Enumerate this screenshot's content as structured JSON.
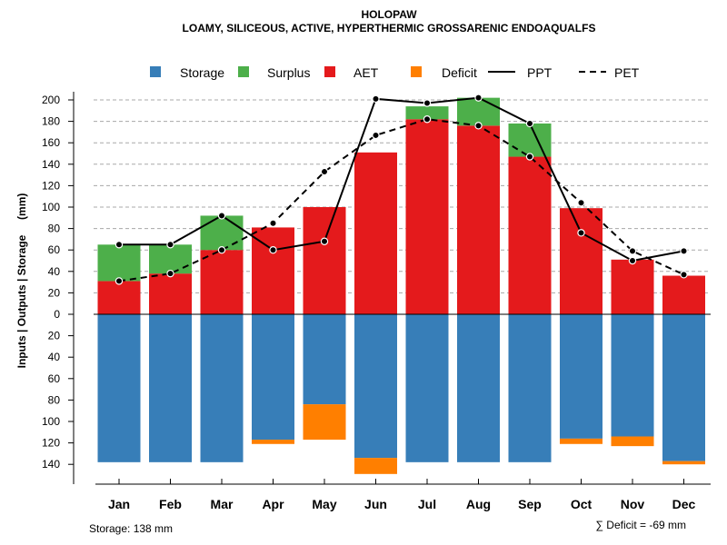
{
  "chart_data": {
    "type": "bar",
    "title": "HOLOPAW",
    "subtitle": "LOAMY, SILICEOUS, ACTIVE, HYPERTHERMIC GROSSARENIC ENDOAQUALFS",
    "ylabel": "Inputs | Outputs | Storage     (mm)",
    "categories": [
      "Jan",
      "Feb",
      "Mar",
      "Apr",
      "May",
      "Jun",
      "Jul",
      "Aug",
      "Sep",
      "Oct",
      "Nov",
      "Dec"
    ],
    "ylim_top": [
      0,
      210
    ],
    "ylim_bottom": [
      0,
      150
    ],
    "yticks_top": [
      "0",
      "20",
      "40",
      "60",
      "80",
      "100",
      "120",
      "140",
      "160",
      "180",
      "200"
    ],
    "yticks_bottom": [
      "20",
      "40",
      "60",
      "80",
      "100",
      "120",
      "140"
    ],
    "legend": [
      {
        "label": "Storage",
        "kind": "box"
      },
      {
        "label": "Surplus",
        "kind": "box"
      },
      {
        "label": "AET",
        "kind": "box"
      },
      {
        "label": "Deficit",
        "kind": "box"
      },
      {
        "label": "PPT",
        "kind": "solid"
      },
      {
        "label": "PET",
        "kind": "dashed"
      }
    ],
    "series": [
      {
        "name": "AET",
        "values": [
          31,
          38,
          60,
          81,
          100,
          151,
          182,
          176,
          147,
          99,
          51,
          36
        ]
      },
      {
        "name": "Surplus",
        "values": [
          34,
          27,
          32,
          0,
          0,
          0,
          12,
          26,
          31,
          0,
          0,
          0
        ]
      },
      {
        "name": "PPT",
        "values": [
          65,
          65,
          92,
          60,
          68,
          201,
          197,
          202,
          178,
          76,
          50,
          59
        ]
      },
      {
        "name": "PET",
        "values": [
          31,
          38,
          60,
          85,
          133,
          167,
          182,
          176,
          147,
          104,
          59,
          37
        ]
      },
      {
        "name": "Storage",
        "values": [
          138,
          138,
          138,
          117,
          84,
          134,
          138,
          138,
          138,
          116,
          114,
          137
        ]
      },
      {
        "name": "Deficit",
        "values": [
          0,
          0,
          0,
          4,
          33,
          15,
          0,
          0,
          0,
          5,
          9,
          3
        ]
      }
    ],
    "colors": {
      "Storage": "#377EB8",
      "Surplus": "#4DAF4A",
      "AET": "#E41A1C",
      "Deficit": "#FF7F00"
    },
    "storage_note": "Storage: 138 mm",
    "deficit_note": "∑ Deficit = -69 mm"
  }
}
